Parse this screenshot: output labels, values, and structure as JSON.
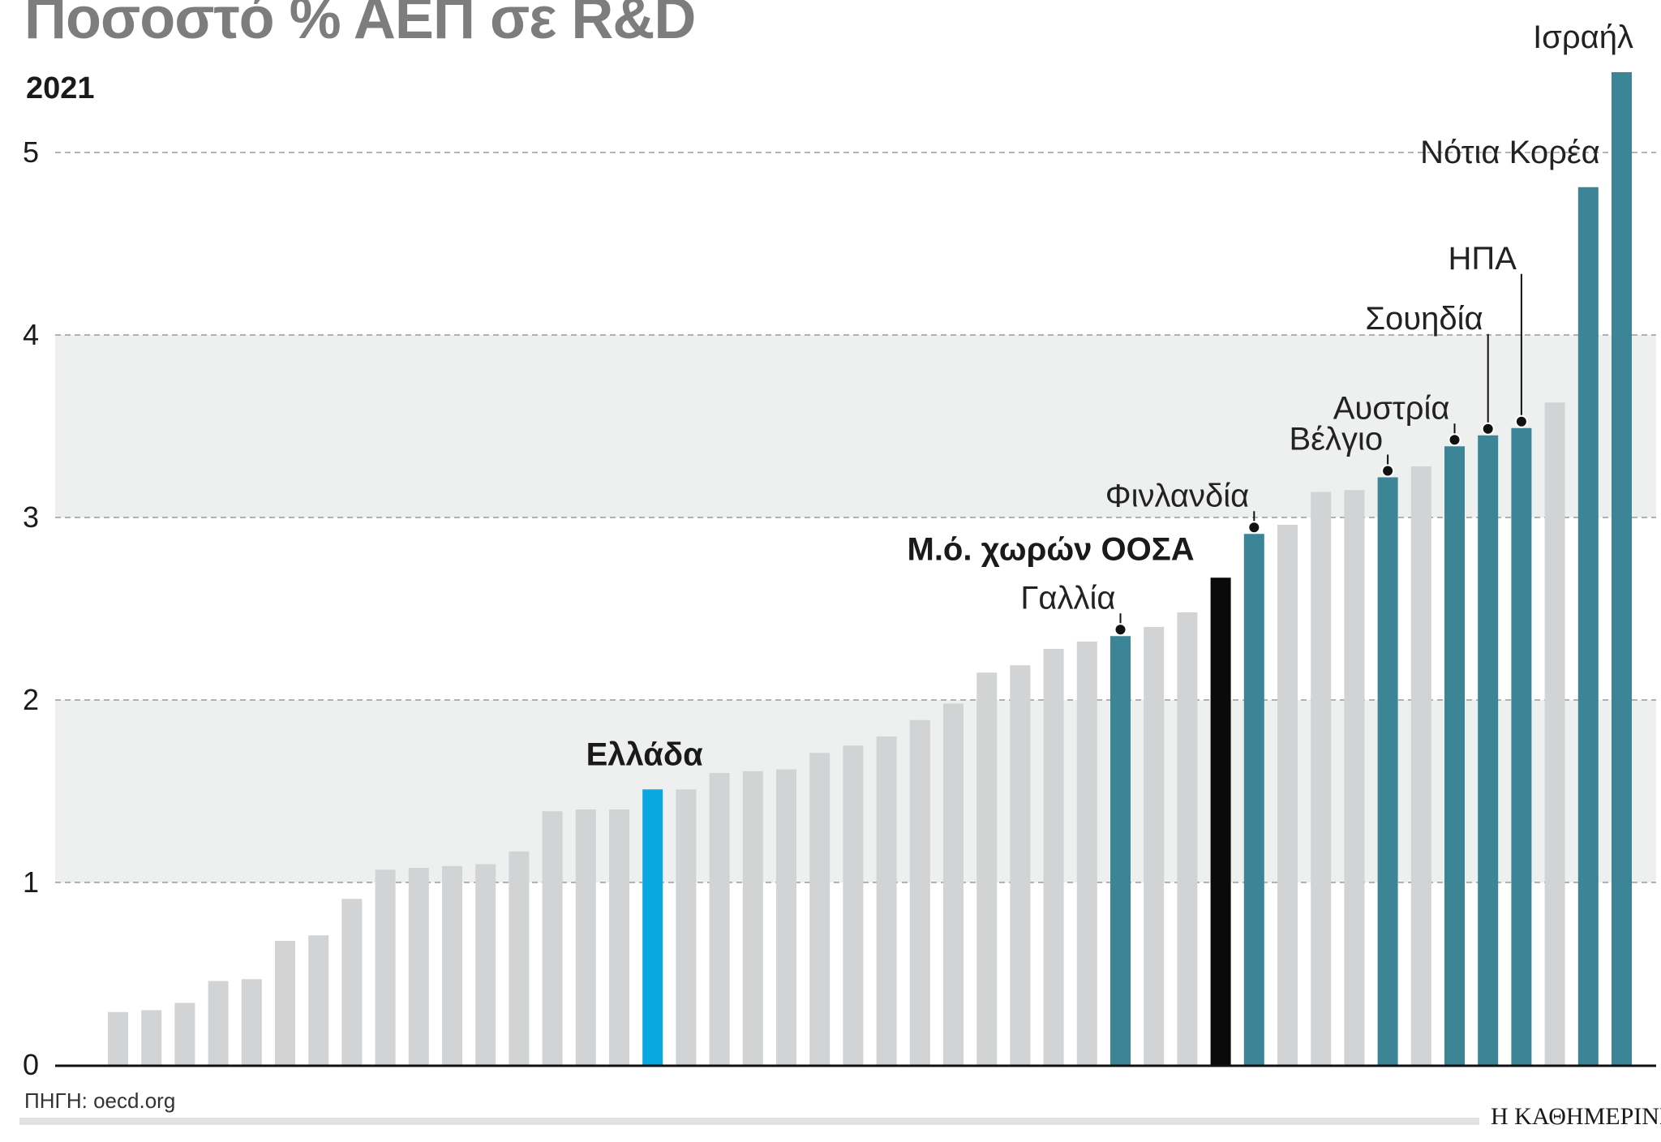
{
  "header": {
    "title": "Ποσοστό % ΑΕΠ σε R&D",
    "year": "2021"
  },
  "footer": {
    "source": "ΠΗΓΗ: oecd.org",
    "logo": "Η ΚΑΘΗΜΕΡΙΝΗ"
  },
  "colors": {
    "default_bar": "#d2d3d5",
    "highlight_bar": "#3b8597",
    "greece_bar": "#0aa8e3",
    "oecd_bar": "#0a0a0a",
    "band": "#eef0f0",
    "grid": "#9a9a9a"
  },
  "chart_data": {
    "type": "bar",
    "title": "Ποσοστό % ΑΕΠ σε R&D",
    "subtitle": "2021",
    "xlabel": "",
    "ylabel": "",
    "ylim": [
      0,
      5.5
    ],
    "yticks": [
      0,
      1,
      2,
      3,
      4,
      5
    ],
    "grid": true,
    "bars": [
      {
        "value": 0.29,
        "label": "",
        "style": "default"
      },
      {
        "value": 0.3,
        "label": "",
        "style": "default"
      },
      {
        "value": 0.34,
        "label": "",
        "style": "default"
      },
      {
        "value": 0.46,
        "label": "",
        "style": "default"
      },
      {
        "value": 0.47,
        "label": "",
        "style": "default"
      },
      {
        "value": 0.68,
        "label": "",
        "style": "default"
      },
      {
        "value": 0.71,
        "label": "",
        "style": "default"
      },
      {
        "value": 0.91,
        "label": "",
        "style": "default"
      },
      {
        "value": 1.07,
        "label": "",
        "style": "default"
      },
      {
        "value": 1.08,
        "label": "",
        "style": "default"
      },
      {
        "value": 1.09,
        "label": "",
        "style": "default"
      },
      {
        "value": 1.1,
        "label": "",
        "style": "default"
      },
      {
        "value": 1.17,
        "label": "",
        "style": "default"
      },
      {
        "value": 1.39,
        "label": "",
        "style": "default"
      },
      {
        "value": 1.4,
        "label": "",
        "style": "default"
      },
      {
        "value": 1.4,
        "label": "",
        "style": "default"
      },
      {
        "value": 1.51,
        "label": "Ελλάδα",
        "style": "greece"
      },
      {
        "value": 1.51,
        "label": "",
        "style": "default"
      },
      {
        "value": 1.6,
        "label": "",
        "style": "default"
      },
      {
        "value": 1.61,
        "label": "",
        "style": "default"
      },
      {
        "value": 1.62,
        "label": "",
        "style": "default"
      },
      {
        "value": 1.71,
        "label": "",
        "style": "default"
      },
      {
        "value": 1.75,
        "label": "",
        "style": "default"
      },
      {
        "value": 1.8,
        "label": "",
        "style": "default"
      },
      {
        "value": 1.89,
        "label": "",
        "style": "default"
      },
      {
        "value": 1.98,
        "label": "",
        "style": "default"
      },
      {
        "value": 2.15,
        "label": "",
        "style": "default"
      },
      {
        "value": 2.19,
        "label": "",
        "style": "default"
      },
      {
        "value": 2.28,
        "label": "",
        "style": "default"
      },
      {
        "value": 2.32,
        "label": "",
        "style": "default"
      },
      {
        "value": 2.35,
        "label": "Γαλλία",
        "style": "highlight"
      },
      {
        "value": 2.4,
        "label": "",
        "style": "default"
      },
      {
        "value": 2.48,
        "label": "",
        "style": "default"
      },
      {
        "value": 2.67,
        "label": "Μ.ό. χωρών ΟΟΣΑ",
        "style": "oecd"
      },
      {
        "value": 2.91,
        "label": "Φινλανδία",
        "style": "highlight"
      },
      {
        "value": 2.96,
        "label": "",
        "style": "default"
      },
      {
        "value": 3.14,
        "label": "",
        "style": "default"
      },
      {
        "value": 3.15,
        "label": "",
        "style": "default"
      },
      {
        "value": 3.22,
        "label": "Βέλγιο",
        "style": "highlight"
      },
      {
        "value": 3.28,
        "label": "",
        "style": "default"
      },
      {
        "value": 3.39,
        "label": "Αυστρία",
        "style": "highlight"
      },
      {
        "value": 3.45,
        "label": "Σουηδία",
        "style": "highlight"
      },
      {
        "value": 3.49,
        "label": "ΗΠΑ",
        "style": "highlight"
      },
      {
        "value": 3.63,
        "label": "",
        "style": "default"
      },
      {
        "value": 4.81,
        "label": "Νότια Κορέα",
        "style": "highlight"
      },
      {
        "value": 5.44,
        "label": "Ισραήλ",
        "style": "highlight"
      }
    ]
  }
}
